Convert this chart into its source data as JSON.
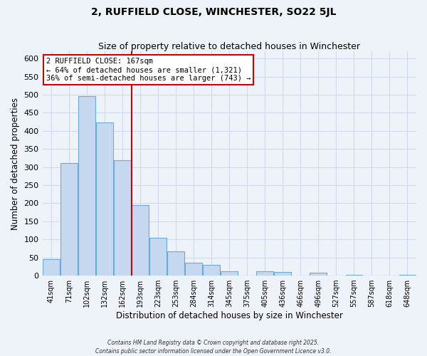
{
  "title": "2, RUFFIELD CLOSE, WINCHESTER, SO22 5JL",
  "subtitle": "Size of property relative to detached houses in Winchester",
  "xlabel": "Distribution of detached houses by size in Winchester",
  "ylabel": "Number of detached properties",
  "bar_labels": [
    "41sqm",
    "71sqm",
    "102sqm",
    "132sqm",
    "162sqm",
    "193sqm",
    "223sqm",
    "253sqm",
    "284sqm",
    "314sqm",
    "345sqm",
    "375sqm",
    "405sqm",
    "436sqm",
    "466sqm",
    "496sqm",
    "527sqm",
    "557sqm",
    "587sqm",
    "618sqm",
    "648sqm"
  ],
  "bar_values": [
    46,
    312,
    497,
    424,
    318,
    195,
    105,
    68,
    36,
    30,
    12,
    0,
    12,
    10,
    0,
    8,
    0,
    2,
    0,
    0,
    3
  ],
  "bar_color": "#c5d8f0",
  "bar_edge_color": "#6aaad4",
  "ref_line_color": "#cc0000",
  "ref_bar_index": 4,
  "annotation_title": "2 RUFFIELD CLOSE: 167sqm",
  "annotation_line1": "← 64% of detached houses are smaller (1,321)",
  "annotation_line2": "36% of semi-detached houses are larger (743) →",
  "annotation_box_color": "#ffffff",
  "annotation_box_edge_color": "#cc0000",
  "ylim": [
    0,
    620
  ],
  "yticks": [
    0,
    50,
    100,
    150,
    200,
    250,
    300,
    350,
    400,
    450,
    500,
    550,
    600
  ],
  "background_color": "#eef2f9",
  "grid_color": "#d0daea",
  "footer1": "Contains HM Land Registry data © Crown copyright and database right 2025.",
  "footer2": "Contains public sector information licensed under the Open Government Licence v3.0."
}
